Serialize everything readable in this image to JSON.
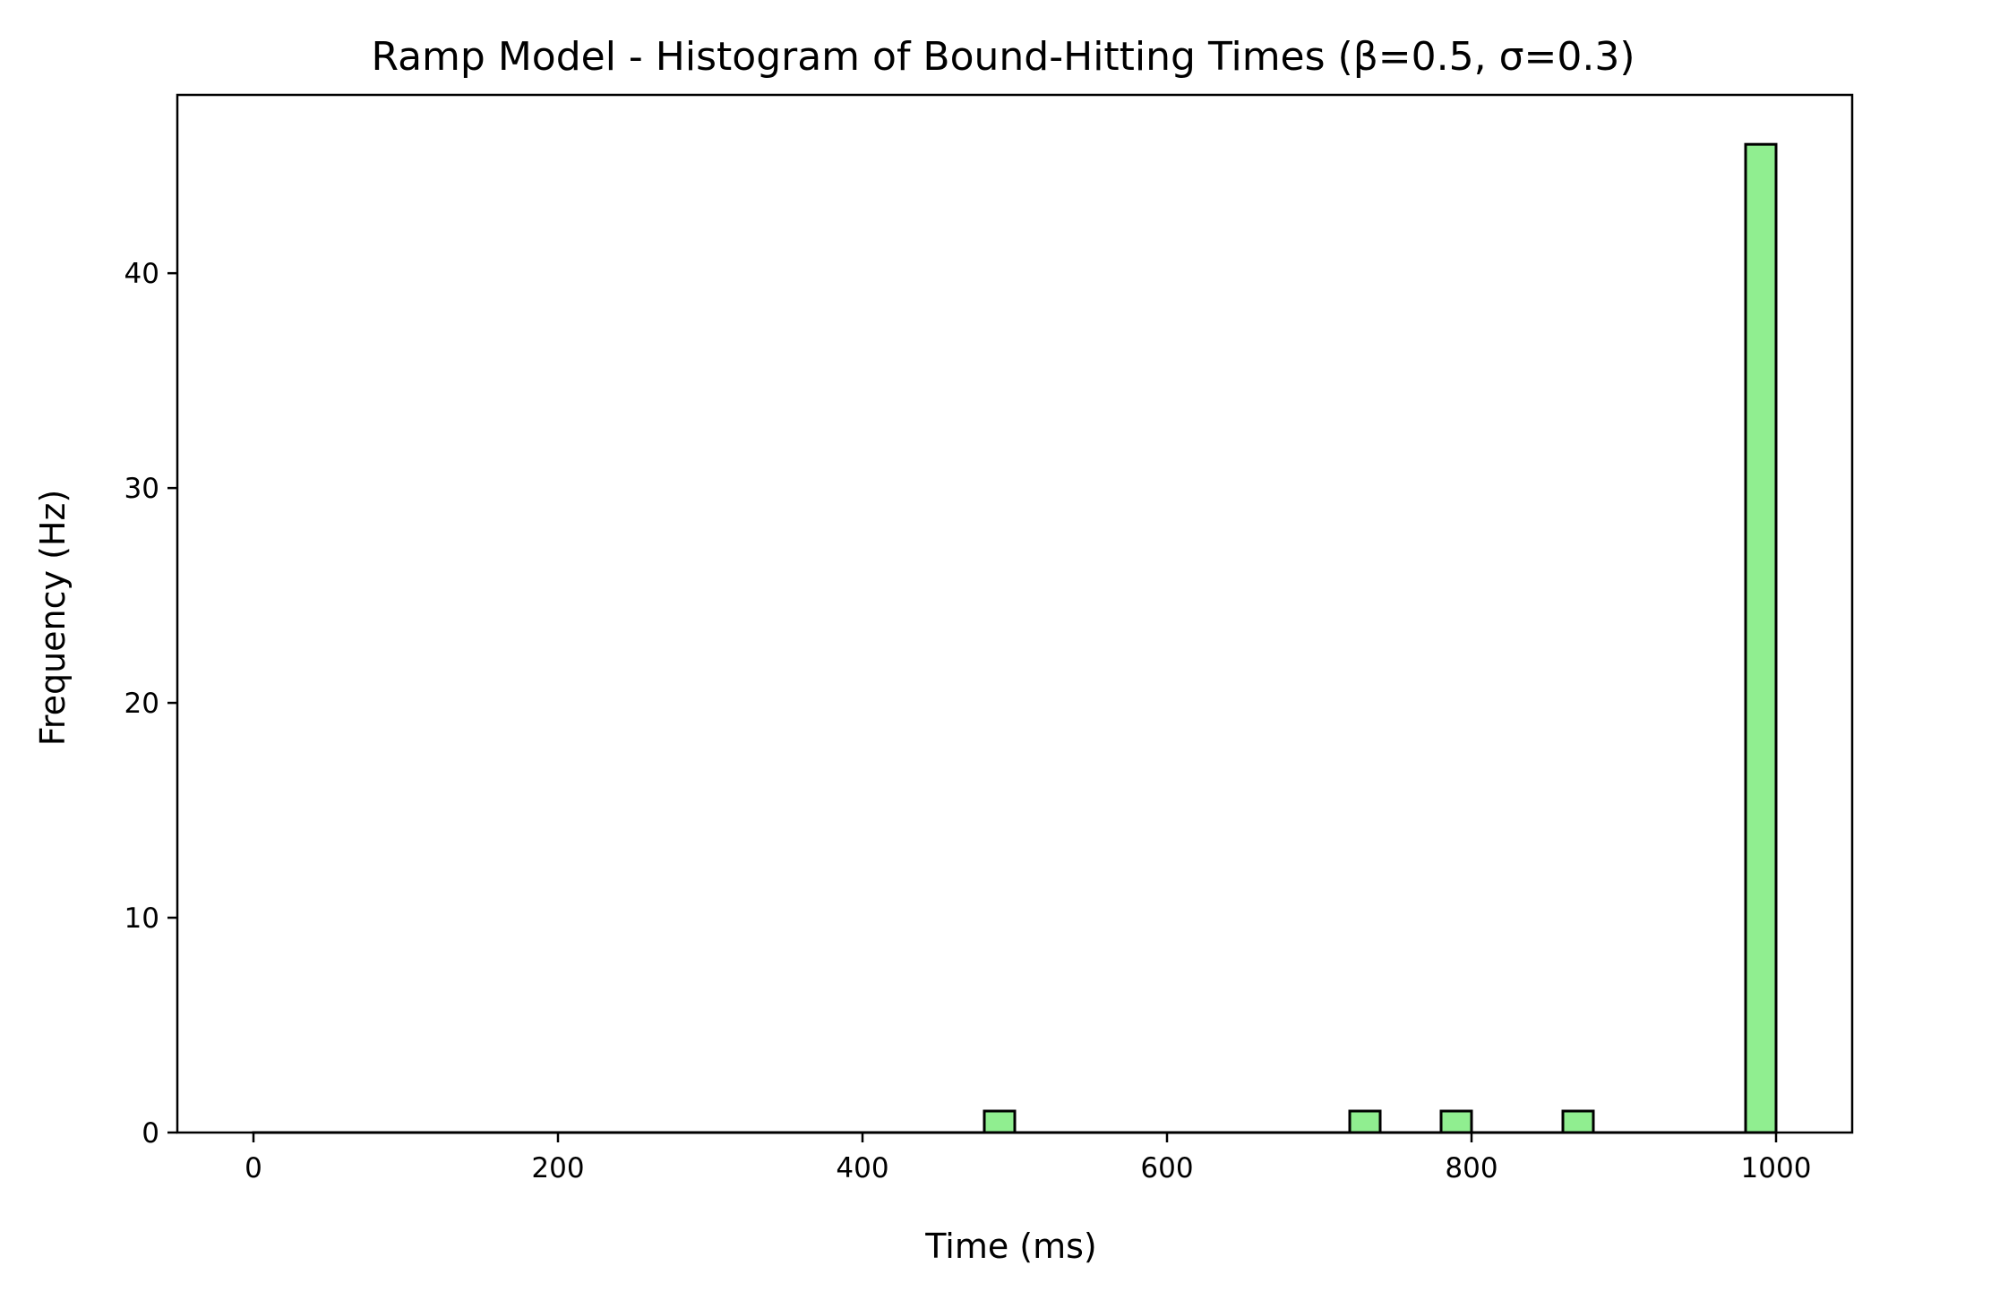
{
  "chart_data": {
    "type": "bar",
    "title": "Ramp Model - Histogram of Bound-Hitting Times (β=0.5, σ=0.3)",
    "xlabel": "Time (ms)",
    "ylabel": "Frequency (Hz)",
    "xlim": [
      -50,
      1050
    ],
    "ylim": [
      0,
      48.3
    ],
    "x_ticks": [
      0,
      200,
      400,
      600,
      800,
      1000
    ],
    "y_ticks": [
      0,
      10,
      20,
      30,
      40
    ],
    "grid": false,
    "bar_color": "#90ee90",
    "edge_color": "#000000",
    "bins": [
      {
        "x0": 0,
        "x1": 480,
        "value": 0
      },
      {
        "x0": 480,
        "x1": 500,
        "value": 1
      },
      {
        "x0": 500,
        "x1": 720,
        "value": 0
      },
      {
        "x0": 720,
        "x1": 740,
        "value": 1
      },
      {
        "x0": 740,
        "x1": 780,
        "value": 0
      },
      {
        "x0": 780,
        "x1": 800,
        "value": 1
      },
      {
        "x0": 800,
        "x1": 860,
        "value": 0
      },
      {
        "x0": 860,
        "x1": 880,
        "value": 1
      },
      {
        "x0": 880,
        "x1": 980,
        "value": 0
      },
      {
        "x0": 980,
        "x1": 1000,
        "value": 46
      }
    ]
  }
}
